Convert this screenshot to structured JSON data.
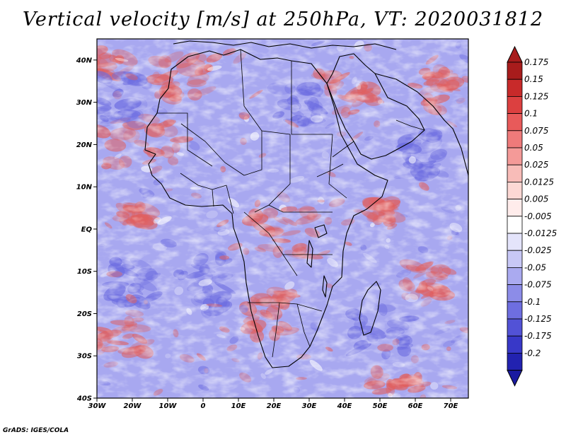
{
  "title": "Vertical velocity [m/s] at 250hPa, VT: 2020031812",
  "credit": "GrADS: IGES/COLA",
  "map": {
    "lon_range": [
      -30,
      75
    ],
    "lat_range": [
      -40,
      45
    ],
    "lat_ticks": [
      {
        "value": 40,
        "label": "40N"
      },
      {
        "value": 30,
        "label": "30N"
      },
      {
        "value": 20,
        "label": "20N"
      },
      {
        "value": 10,
        "label": "10N"
      },
      {
        "value": 0,
        "label": "EQ"
      },
      {
        "value": -10,
        "label": "10S"
      },
      {
        "value": -20,
        "label": "20S"
      },
      {
        "value": -30,
        "label": "30S"
      },
      {
        "value": -40,
        "label": "40S"
      }
    ],
    "lon_ticks": [
      {
        "value": -30,
        "label": "30W"
      },
      {
        "value": -20,
        "label": "20W"
      },
      {
        "value": -10,
        "label": "10W"
      },
      {
        "value": 0,
        "label": "0"
      },
      {
        "value": 10,
        "label": "10E"
      },
      {
        "value": 20,
        "label": "20E"
      },
      {
        "value": 30,
        "label": "30E"
      },
      {
        "value": 40,
        "label": "40E"
      },
      {
        "value": 50,
        "label": "50E"
      },
      {
        "value": 60,
        "label": "60E"
      },
      {
        "value": 70,
        "label": "70E"
      }
    ]
  },
  "colorbar": {
    "levels": [
      {
        "label": "0.175",
        "color": "#a81c1c"
      },
      {
        "label": "0.15",
        "color": "#c82a2a"
      },
      {
        "label": "0.125",
        "color": "#dc4040"
      },
      {
        "label": "0.1",
        "color": "#e85a5a"
      },
      {
        "label": "0.075",
        "color": "#ee7a7a"
      },
      {
        "label": "0.05",
        "color": "#f49a98"
      },
      {
        "label": "0.025",
        "color": "#f8bcb8"
      },
      {
        "label": "0.0125",
        "color": "#fcd8d4"
      },
      {
        "label": "0.005",
        "color": "#ffeceb"
      },
      {
        "label": "-0.005",
        "color": "#ffffff"
      },
      {
        "label": "-0.0125",
        "color": "#e4e4fb"
      },
      {
        "label": "-0.025",
        "color": "#c8c8f6"
      },
      {
        "label": "-0.05",
        "color": "#aaaaf0"
      },
      {
        "label": "-0.075",
        "color": "#8c8ce8"
      },
      {
        "label": "-0.1",
        "color": "#6e6ee0"
      },
      {
        "label": "-0.125",
        "color": "#5252d6"
      },
      {
        "label": "-0.175",
        "color": "#3838c8"
      },
      {
        "label": "-0.2",
        "color": "#2222b0"
      }
    ],
    "top_cap_color": "#a81c1c",
    "bottom_cap_color": "#1a1aa0"
  },
  "colors": {
    "positive": "#e06060",
    "negative": "#6c6ce0",
    "neutral": "#ececff",
    "outline": "#000000"
  }
}
